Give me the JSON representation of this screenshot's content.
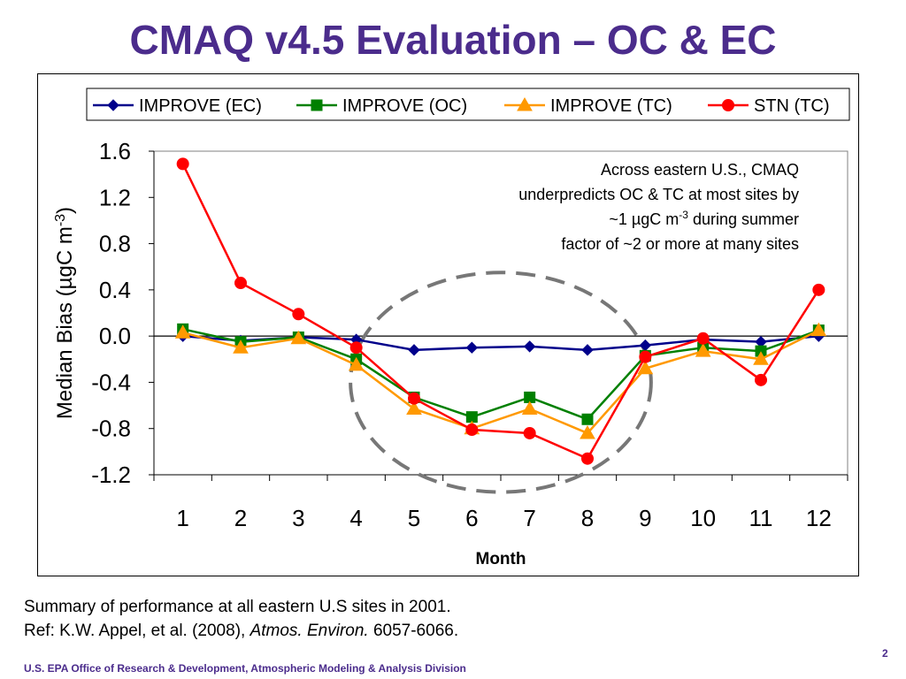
{
  "slide": {
    "title": "CMAQ v4.5 Evaluation – OC & EC",
    "summary_line1": "Summary of performance at all eastern U.S sites in 2001.",
    "summary_ref_prefix": "Ref: K.W. Appel, et al. (2008), ",
    "summary_ref_journal": "Atmos. Environ.",
    "summary_ref_pages": " 6057-6066.",
    "footer": "U.S. EPA Office of Research & Development, Atmospheric Modeling & Analysis Division",
    "page_number": "2"
  },
  "chart_data": {
    "type": "line",
    "x": [
      1,
      2,
      3,
      4,
      5,
      6,
      7,
      8,
      9,
      10,
      11,
      12
    ],
    "xlabel": "Month",
    "ylabel": "Median Bias (µgC m-3)",
    "ylabel_parts": {
      "main": "Median Bias (µgC m",
      "sup": "-3",
      "close": ")"
    },
    "ylim": [
      -1.2,
      1.6
    ],
    "yticks": [
      -1.2,
      -0.8,
      -0.4,
      0.0,
      0.4,
      0.8,
      1.2,
      1.6
    ],
    "ytick_labels": [
      "-1.2",
      "-0.8",
      "-0.4",
      "0.0",
      "0.4",
      "0.8",
      "1.2",
      "1.6"
    ],
    "xtick_labels": [
      "1",
      "2",
      "3",
      "4",
      "5",
      "6",
      "7",
      "8",
      "9",
      "10",
      "11",
      "12"
    ],
    "grid": false,
    "legend_position": "top",
    "series": [
      {
        "name": "IMPROVE (EC)",
        "color": "#00008B",
        "marker": "diamond",
        "values": [
          0.0,
          -0.04,
          -0.01,
          -0.03,
          -0.12,
          -0.1,
          -0.09,
          -0.12,
          -0.08,
          -0.03,
          -0.05,
          0.0
        ]
      },
      {
        "name": "IMPROVE (OC)",
        "color": "#008000",
        "marker": "square",
        "values": [
          0.06,
          -0.05,
          -0.01,
          -0.2,
          -0.53,
          -0.7,
          -0.53,
          -0.72,
          -0.17,
          -0.1,
          -0.13,
          0.05
        ]
      },
      {
        "name": "IMPROVE (TC)",
        "color": "#FF9900",
        "marker": "triangle",
        "values": [
          0.03,
          -0.1,
          -0.02,
          -0.25,
          -0.63,
          -0.8,
          -0.63,
          -0.84,
          -0.28,
          -0.13,
          -0.2,
          0.05
        ]
      },
      {
        "name": "STN (TC)",
        "color": "#FF0000",
        "marker": "circle",
        "values": [
          1.49,
          0.46,
          0.19,
          -0.1,
          -0.54,
          -0.81,
          -0.84,
          -1.06,
          -0.18,
          -0.02,
          -0.38,
          0.4
        ]
      }
    ],
    "annotation": {
      "line1": "Across eastern U.S., CMAQ",
      "line2": "underpredicts OC & TC at most sites by",
      "line3_prefix": "~1 µgC m",
      "line3_sup": "-3",
      "line3_suffix": " during summer",
      "line4": "factor of ~2 or more at many sites"
    },
    "highlight_ellipse": {
      "x_center": 6.5,
      "y_center": -0.4,
      "x_radius": 2.6,
      "y_radius": 0.95,
      "color": "#777777",
      "style": "dashed"
    }
  }
}
